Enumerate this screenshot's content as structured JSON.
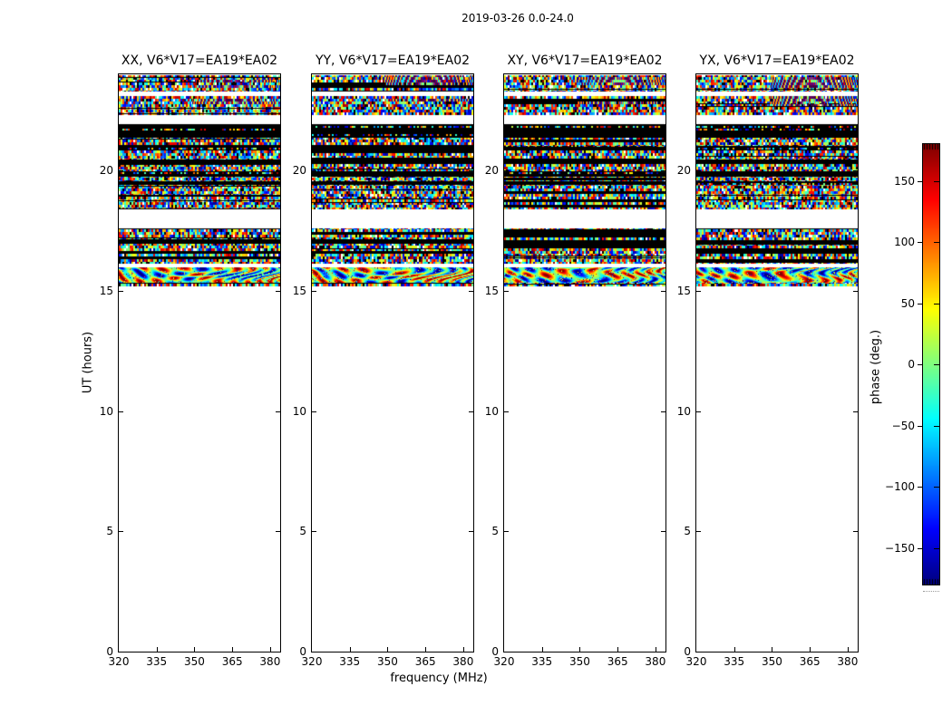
{
  "figure": {
    "background": "#ffffff",
    "frame_color": "#000000"
  },
  "chart_data": {
    "type": "heatmap",
    "title": "2019-03-26 0.0-24.0",
    "xlabel": "frequency (MHz)",
    "ylabel": "UT (hours)",
    "xlim": [
      320,
      384
    ],
    "ylim": [
      0,
      24
    ],
    "xticks": [
      320,
      335,
      350,
      365,
      380
    ],
    "yticks": [
      0,
      5,
      10,
      15,
      20
    ],
    "colormap": "jet",
    "panels": [
      {
        "pol": "XX",
        "title": "XX, V6*V17=EA19*EA02",
        "seed": 7
      },
      {
        "pol": "YY",
        "title": "YY, V6*V17=EA19*EA02",
        "seed": 13
      },
      {
        "pol": "XY",
        "title": "XY, V6*V17=EA19*EA02",
        "seed": 29
      },
      {
        "pol": "YX",
        "title": "YX, V6*V17=EA19*EA02",
        "seed": 41
      }
    ],
    "colorbar": {
      "label": "phase (deg.)",
      "vmin": -180,
      "vmax": 180,
      "ticks": [
        150,
        100,
        50,
        0,
        -50,
        -100,
        -150
      ]
    },
    "data_extent_hours": [
      15.18,
      23.95
    ],
    "time_bands": [
      {
        "from": 23.95,
        "to": 23.45,
        "kind": "noise",
        "fringy": true
      },
      {
        "from": 23.45,
        "to": 23.28,
        "kind": "noise"
      },
      {
        "from": 23.28,
        "to": 23.1,
        "kind": "white"
      },
      {
        "from": 23.1,
        "to": 22.68,
        "kind": "noise",
        "fringy": true
      },
      {
        "from": 22.68,
        "to": 22.3,
        "kind": "noise"
      },
      {
        "from": 22.3,
        "to": 21.92,
        "kind": "white"
      },
      {
        "from": 21.92,
        "to": 21.38,
        "kind": "black"
      },
      {
        "from": 21.38,
        "to": 21.02,
        "kind": "noise"
      },
      {
        "from": 21.02,
        "to": 20.82,
        "kind": "black"
      },
      {
        "from": 20.82,
        "to": 20.46,
        "kind": "noise"
      },
      {
        "from": 20.46,
        "to": 20.26,
        "kind": "black"
      },
      {
        "from": 20.26,
        "to": 19.96,
        "kind": "noise"
      },
      {
        "from": 19.96,
        "to": 19.76,
        "kind": "black"
      },
      {
        "from": 19.76,
        "to": 19.56,
        "kind": "noise"
      },
      {
        "from": 19.56,
        "to": 19.41,
        "kind": "black"
      },
      {
        "from": 19.41,
        "to": 18.86,
        "kind": "noise"
      },
      {
        "from": 18.86,
        "to": 18.4,
        "kind": "noise"
      },
      {
        "from": 18.4,
        "to": 17.6,
        "kind": "white"
      },
      {
        "from": 17.6,
        "to": 17.12,
        "kind": "noise"
      },
      {
        "from": 17.12,
        "to": 16.97,
        "kind": "black"
      },
      {
        "from": 16.97,
        "to": 16.12,
        "kind": "noise"
      },
      {
        "from": 16.12,
        "to": 15.97,
        "kind": "white"
      },
      {
        "from": 15.97,
        "to": 15.33,
        "kind": "fringe"
      },
      {
        "from": 15.33,
        "to": 15.18,
        "kind": "noise"
      }
    ]
  }
}
